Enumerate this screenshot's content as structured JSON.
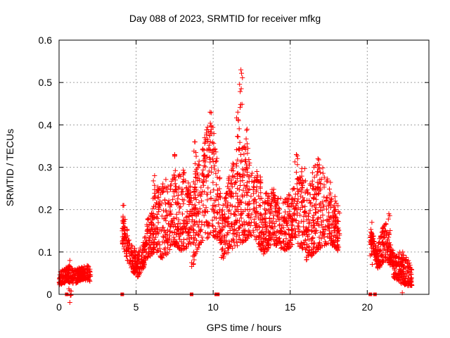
{
  "chart_data": {
    "type": "scatter",
    "title": "Day 088 of 2023, SRMTID for receiver mfkg",
    "xlabel": "GPS time / hours",
    "ylabel": "SRMTID / TECUs",
    "xlim": [
      0,
      24
    ],
    "ylim": [
      0,
      0.6
    ],
    "x_ticks": [
      0,
      5,
      10,
      15,
      20
    ],
    "y_ticks": [
      0,
      0.1,
      0.2,
      0.3,
      0.4,
      0.5,
      0.6
    ],
    "x_tick_labels": [
      "0",
      "5",
      "10",
      "15",
      "20"
    ],
    "y_tick_labels": [
      "0",
      "0.1",
      "0.2",
      "0.3",
      "0.4",
      "0.5",
      "0.6"
    ],
    "grid": true,
    "marker": "+",
    "marker_color": "#ff0000",
    "segments": [
      {
        "x_start": 0.0,
        "x_end": 2.05,
        "low": [
          0.02,
          0.03,
          0.025,
          0.035,
          0.03
        ],
        "high": [
          0.05,
          0.07,
          0.06,
          0.065,
          0.07
        ],
        "peaks": [
          {
            "x": 0.7,
            "y": 0.08
          }
        ]
      },
      {
        "x_start": 4.1,
        "x_end": 5.6,
        "low": [
          0.12,
          0.06,
          0.04,
          0.07
        ],
        "high": [
          0.2,
          0.13,
          0.1,
          0.14
        ],
        "peaks": [
          {
            "x": 4.2,
            "y": 0.21
          }
        ]
      },
      {
        "x_start": 5.6,
        "x_end": 8.6,
        "low": [
          0.08,
          0.1,
          0.08,
          0.12,
          0.1,
          0.12
        ],
        "high": [
          0.16,
          0.24,
          0.28,
          0.28,
          0.3,
          0.26
        ],
        "peaks": [
          {
            "x": 7.5,
            "y": 0.33
          },
          {
            "x": 6.2,
            "y": 0.28
          }
        ]
      },
      {
        "x_start": 8.6,
        "x_end": 10.5,
        "low": [
          0.06,
          0.12,
          0.14,
          0.12
        ],
        "high": [
          0.26,
          0.34,
          0.43,
          0.26
        ],
        "peaks": [
          {
            "x": 8.8,
            "y": 0.36
          },
          {
            "x": 9.8,
            "y": 0.43
          },
          {
            "x": 9.4,
            "y": 0.34
          }
        ]
      },
      {
        "x_start": 10.5,
        "x_end": 13.2,
        "low": [
          0.08,
          0.1,
          0.12,
          0.14,
          0.1
        ],
        "high": [
          0.2,
          0.3,
          0.38,
          0.3,
          0.28
        ],
        "peaks": [
          {
            "x": 11.6,
            "y": 0.43
          },
          {
            "x": 11.8,
            "y": 0.53
          },
          {
            "x": 12.2,
            "y": 0.39
          }
        ]
      },
      {
        "x_start": 13.2,
        "x_end": 16.0,
        "low": [
          0.09,
          0.12,
          0.1,
          0.12,
          0.1
        ],
        "high": [
          0.24,
          0.25,
          0.22,
          0.26,
          0.32
        ],
        "peaks": [
          {
            "x": 15.4,
            "y": 0.33
          }
        ]
      },
      {
        "x_start": 16.0,
        "x_end": 18.2,
        "low": [
          0.08,
          0.1,
          0.12,
          0.1
        ],
        "high": [
          0.26,
          0.32,
          0.28,
          0.2
        ],
        "peaks": [
          {
            "x": 16.8,
            "y": 0.32
          }
        ]
      },
      {
        "x_start": 20.2,
        "x_end": 21.7,
        "low": [
          0.12,
          0.06,
          0.08,
          0.06
        ],
        "high": [
          0.15,
          0.12,
          0.18,
          0.1
        ],
        "peaks": [
          {
            "x": 20.3,
            "y": 0.17
          },
          {
            "x": 21.4,
            "y": 0.19
          }
        ]
      },
      {
        "x_start": 21.7,
        "x_end": 22.9,
        "low": [
          0.04,
          0.03,
          0.02,
          0.02
        ],
        "high": [
          0.09,
          0.1,
          0.09,
          0.07
        ],
        "peaks": [
          {
            "x": 22.3,
            "y": 0.1
          }
        ]
      }
    ],
    "zero_marks": [
      0.5,
      4.1,
      8.6,
      10.2,
      10.3,
      20.2,
      20.5
    ]
  }
}
